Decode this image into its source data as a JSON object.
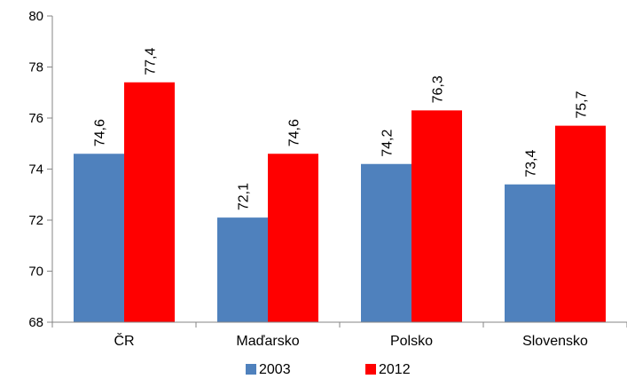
{
  "chart_data": {
    "type": "bar",
    "categories": [
      "ČR",
      "Maďarsko",
      "Polsko",
      "Slovensko"
    ],
    "series": [
      {
        "name": "2003",
        "values": [
          74.6,
          72.1,
          74.2,
          73.4
        ],
        "labels": [
          "74,6",
          "72,1",
          "74,2",
          "73,4"
        ],
        "color": "#4F81BD"
      },
      {
        "name": "2012",
        "values": [
          77.4,
          74.6,
          76.3,
          75.7
        ],
        "labels": [
          "77,4",
          "74,6",
          "76,3",
          "75,7"
        ],
        "color": "#FF0000"
      }
    ],
    "ylim": [
      68,
      80
    ],
    "yticks": [
      68,
      70,
      72,
      74,
      76,
      78,
      80
    ],
    "grid": false,
    "legend_position": "bottom"
  }
}
